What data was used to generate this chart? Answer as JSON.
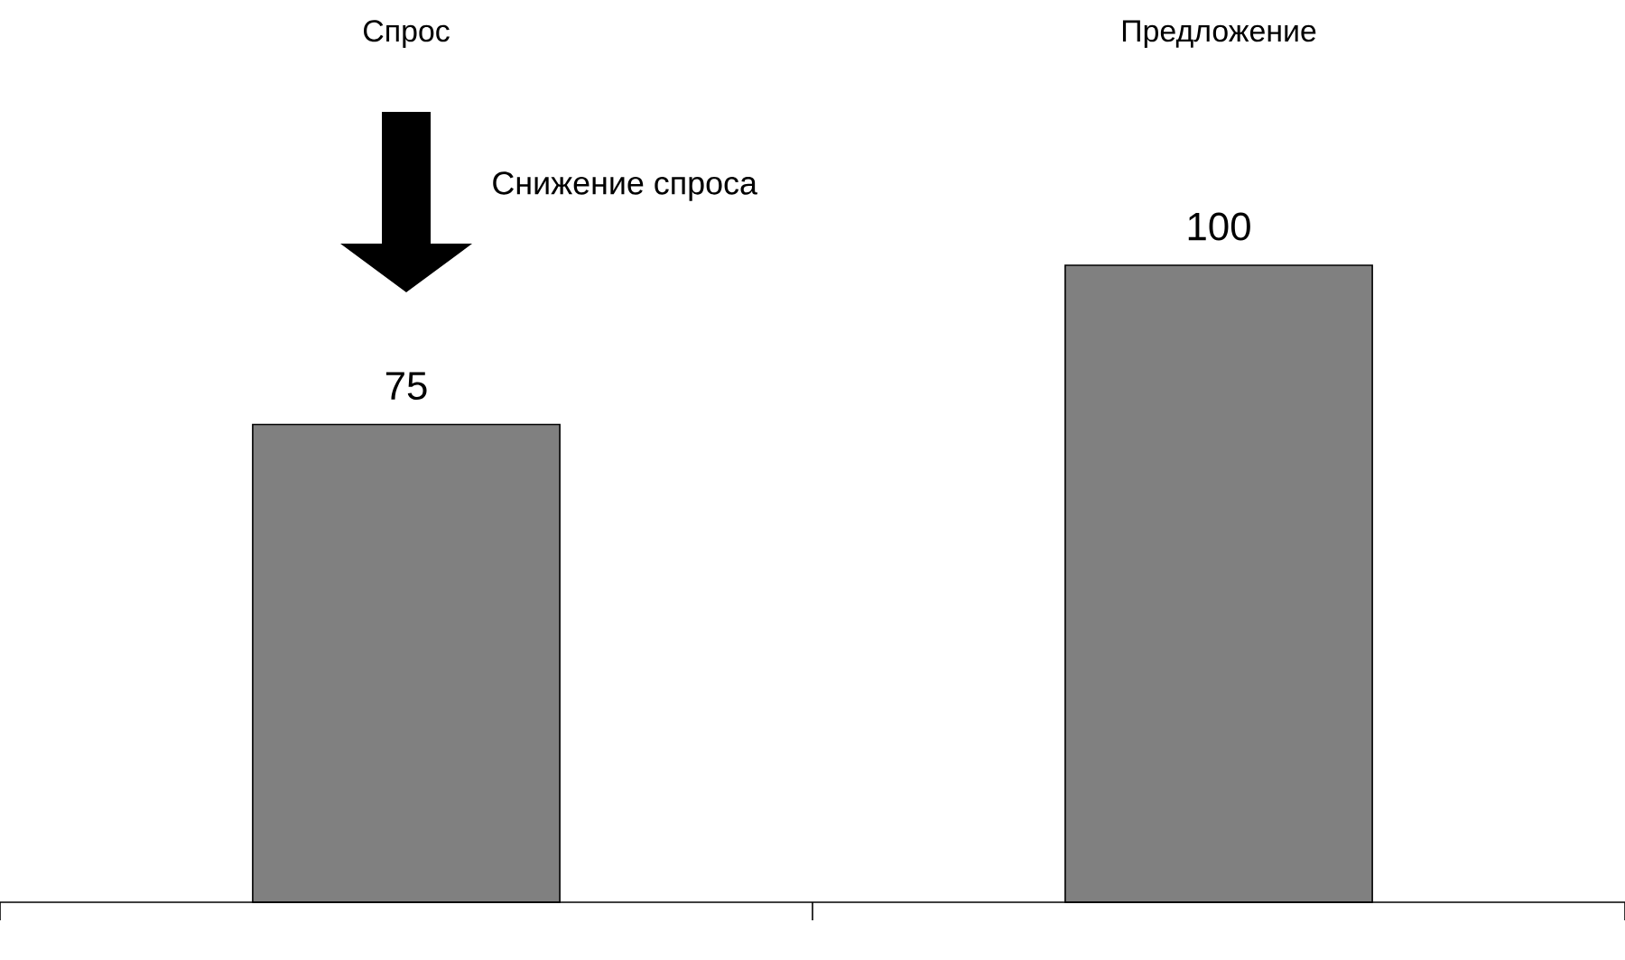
{
  "chart_data": {
    "type": "bar",
    "categories": [
      "Спрос",
      "Предложение"
    ],
    "values": [
      75,
      100
    ],
    "color": "#808080",
    "data_labels": true,
    "annotations": [
      "Снижение спроса"
    ]
  }
}
